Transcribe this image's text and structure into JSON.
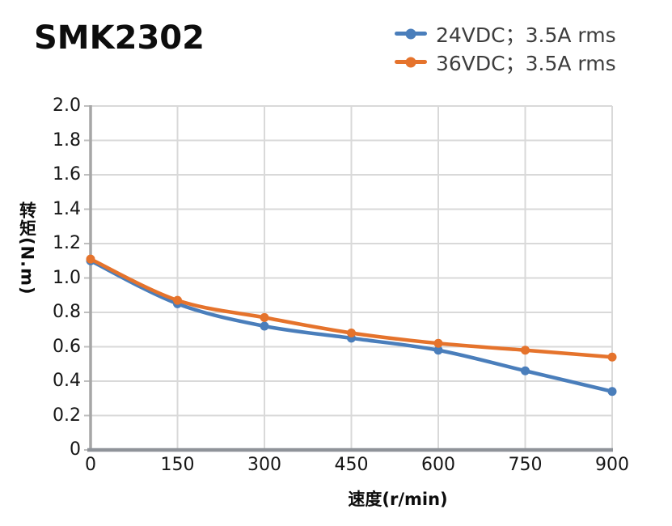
{
  "page_title": "SMK2302",
  "colors": {
    "series_24vdc": "#4a7ebb",
    "series_36vdc": "#e5732c",
    "grid": "#d9d9d9",
    "tick_stub": "#bfbfbf",
    "axis_left": "#a6a6a6",
    "axis_bottom": "#8f9399",
    "tick_text": "#161616",
    "legend_text": "#3d3d3d",
    "title_text": "#0d0d0d"
  },
  "legend": {
    "position": "top-right",
    "items": [
      {
        "label": "24VDC；3.5A rms",
        "marker": "line-with-dot",
        "color": "#4a7ebb"
      },
      {
        "label": "36VDC；3.5A rms",
        "marker": "line-with-dot",
        "color": "#e5732c"
      }
    ]
  },
  "chart_data": {
    "type": "line",
    "title": "SMK2302",
    "xlabel": "速度(r/min)",
    "ylabel": "转矩(N.m)",
    "x": [
      0,
      150,
      300,
      450,
      600,
      750,
      900
    ],
    "xlim": [
      0,
      900
    ],
    "ylim": [
      0,
      2.0
    ],
    "x_tick_labels": [
      "0",
      "150",
      "300",
      "450",
      "600",
      "750",
      "900"
    ],
    "y_tick_labels": [
      "2.0",
      "1.8",
      "1.6",
      "1.4",
      "1.2",
      "1.0",
      "0.8",
      "0.6",
      "0.4",
      "0.2",
      "0"
    ],
    "grid": true,
    "line_style": "smooth",
    "legend_position": "top-right",
    "series": [
      {
        "name": "24VDC；3.5A rms",
        "color": "#4a7ebb",
        "marker": "circle",
        "values": [
          1.1,
          0.85,
          0.72,
          0.65,
          0.58,
          0.46,
          0.34
        ]
      },
      {
        "name": "36VDC；3.5A rms",
        "color": "#e5732c",
        "marker": "circle",
        "values": [
          1.11,
          0.87,
          0.77,
          0.68,
          0.62,
          0.58,
          0.54
        ]
      }
    ]
  }
}
